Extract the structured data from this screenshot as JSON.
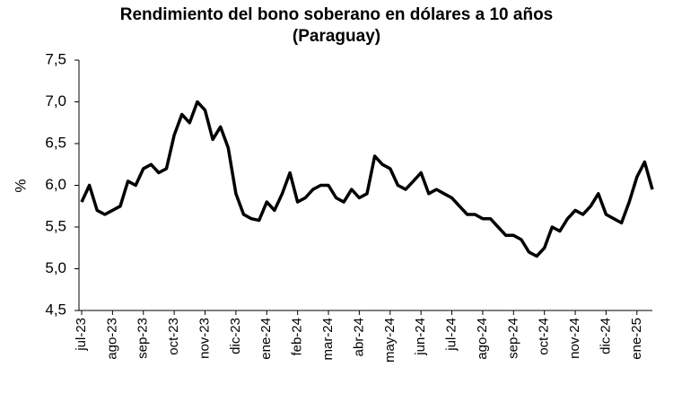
{
  "chart_data": {
    "type": "line",
    "title_lines": [
      "Rendimiento del bono soberano en dólares a 10 años",
      "(Paraguay)"
    ],
    "y_label": "%",
    "categories": [
      "jul-23",
      null,
      null,
      null,
      "ago-23",
      null,
      null,
      null,
      "sep-23",
      null,
      null,
      null,
      "oct-23",
      null,
      null,
      null,
      "nov-23",
      null,
      null,
      null,
      "dic-23",
      null,
      null,
      null,
      "ene-24",
      null,
      null,
      null,
      "feb-24",
      null,
      null,
      null,
      "mar-24",
      null,
      null,
      null,
      "abr-24",
      null,
      null,
      null,
      "may-24",
      null,
      null,
      null,
      "jun-24",
      null,
      null,
      null,
      "jul-24",
      null,
      null,
      null,
      "ago-24",
      null,
      null,
      null,
      "sep-24",
      null,
      null,
      null,
      "oct-24",
      null,
      null,
      null,
      "nov-24",
      null,
      null,
      null,
      "dic-24",
      null,
      null,
      null,
      "ene-25",
      null,
      null
    ],
    "series": [
      {
        "color": "#000000",
        "values": [
          5.8,
          6.0,
          5.7,
          5.65,
          5.7,
          5.75,
          6.05,
          6.0,
          6.2,
          6.25,
          6.15,
          6.2,
          6.6,
          6.85,
          6.75,
          7.0,
          6.9,
          6.55,
          6.7,
          6.45,
          5.9,
          5.65,
          5.6,
          5.58,
          5.8,
          5.7,
          5.9,
          6.15,
          5.8,
          5.85,
          5.95,
          6.0,
          6.0,
          5.85,
          5.8,
          5.95,
          5.85,
          5.9,
          6.35,
          6.25,
          6.2,
          6.0,
          5.95,
          6.05,
          6.15,
          5.9,
          5.95,
          5.9,
          5.85,
          5.75,
          5.65,
          5.65,
          5.6,
          5.6,
          5.5,
          5.4,
          5.4,
          5.35,
          5.2,
          5.15,
          5.25,
          5.5,
          5.45,
          5.6,
          5.7,
          5.65,
          5.75,
          5.9,
          5.65,
          5.6,
          5.55,
          5.8,
          6.1,
          6.28,
          5.95
        ]
      }
    ],
    "ylim": [
      4.5,
      7.5
    ],
    "yticks": [
      {
        "value": 4.5,
        "label": "4,5"
      },
      {
        "value": 5,
        "label": "5,0"
      },
      {
        "value": 5.5,
        "label": "5,5"
      },
      {
        "value": 6,
        "label": "6,0"
      },
      {
        "value": 6.5,
        "label": "6,5"
      },
      {
        "value": 7,
        "label": "7,0"
      },
      {
        "value": 7.5,
        "label": "7,5"
      }
    ],
    "grid": false
  }
}
